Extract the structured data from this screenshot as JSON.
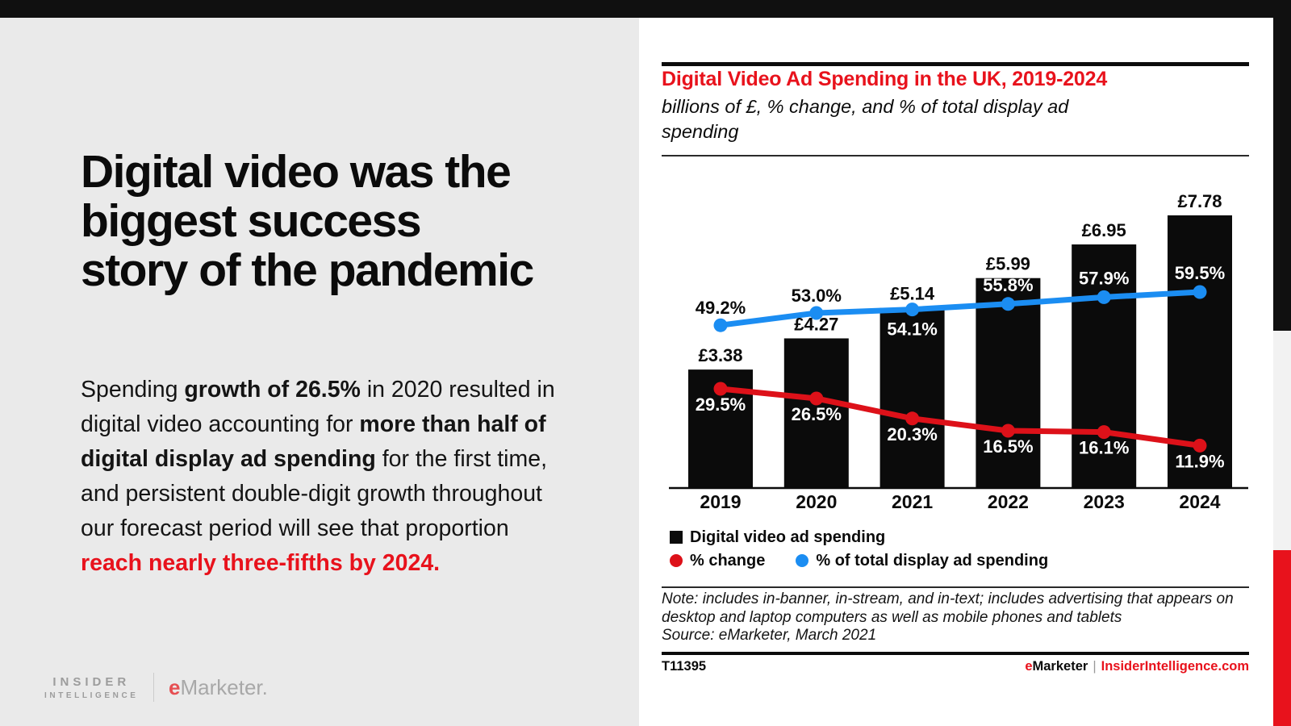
{
  "palette": {
    "accent_red": "#e8121c",
    "line_red": "#dd1119",
    "line_blue": "#1b8df2",
    "bar_black": "#0b0b0b",
    "left_bg": "#eaeaea",
    "strip_gray": "#f2f2f2"
  },
  "left_panel": {
    "headline_lines": [
      "Digital video was the",
      "biggest success",
      "story of the pandemic"
    ],
    "paragraph": [
      {
        "text": "Spending ",
        "bold": false,
        "red": false
      },
      {
        "text": "growth of 26.5%",
        "bold": true,
        "red": false
      },
      {
        "text": " in 2020 resulted in digital video accounting for ",
        "bold": false,
        "red": false
      },
      {
        "text": "more than half of digital display ad spending",
        "bold": true,
        "red": false
      },
      {
        "text": " for the first time, and persistent double-digit growth throughout our forecast period will see that proportion ",
        "bold": false,
        "red": false
      },
      {
        "text": "reach nearly three-fifths by 2024.",
        "bold": true,
        "red": true
      }
    ],
    "logo": {
      "insider": "INSIDER",
      "intelligence": "INTELLIGENCE",
      "emarketer_e": "e",
      "emarketer_rest": "Marketer."
    }
  },
  "chart_card": {
    "title": "Digital Video Ad Spending in the UK, 2019-2024",
    "subtitle": "billions of £, % change, and % of total display ad spending",
    "legend": [
      {
        "label": "Digital video ad spending",
        "swatch": "square",
        "color": "#0b0b0b"
      },
      {
        "label": "% change",
        "swatch": "circle",
        "color": "#dd1119"
      },
      {
        "label": "% of total display ad spending",
        "swatch": "circle",
        "color": "#1b8df2"
      }
    ],
    "note": "Note: includes in-banner, in-stream, and in-text; includes advertising that appears on desktop and laptop computers as well as mobile phones and tablets",
    "source": "Source: eMarketer, March 2021",
    "footer_id": "T11395",
    "footer_brand_e": "e",
    "footer_brand_rest": "Marketer",
    "footer_separator": "|",
    "footer_site": "InsiderIntelligence.com"
  },
  "chart_data": {
    "type": "bar",
    "subtype": "bar-with-two-lines",
    "categories": [
      "2019",
      "2020",
      "2021",
      "2022",
      "2023",
      "2024"
    ],
    "series": [
      {
        "name": "Digital video ad spending",
        "type": "bar",
        "unit": "billions of £",
        "color": "#0b0b0b",
        "values": [
          3.38,
          4.27,
          5.14,
          5.99,
          6.95,
          7.78
        ],
        "labels": [
          "£3.38",
          "£4.27",
          "£5.14",
          "£5.99",
          "£6.95",
          "£7.78"
        ]
      },
      {
        "name": "% change",
        "type": "line",
        "unit": "%",
        "color": "#dd1119",
        "values": [
          29.5,
          26.5,
          20.3,
          16.5,
          16.1,
          11.9
        ],
        "labels": [
          "29.5%",
          "26.5%",
          "20.3%",
          "16.5%",
          "16.1%",
          "11.9%"
        ]
      },
      {
        "name": "% of total display ad spending",
        "type": "line",
        "unit": "%",
        "color": "#1b8df2",
        "values": [
          49.2,
          53.0,
          54.1,
          55.8,
          57.9,
          59.5
        ],
        "labels": [
          "49.2%",
          "53.0%",
          "54.1%",
          "55.8%",
          "57.9%",
          "59.5%"
        ]
      }
    ],
    "title": "Digital Video Ad Spending in the UK, 2019-2024",
    "xlabel": "",
    "ylabel": "",
    "grid": false,
    "legend_position": "bottom-left"
  }
}
